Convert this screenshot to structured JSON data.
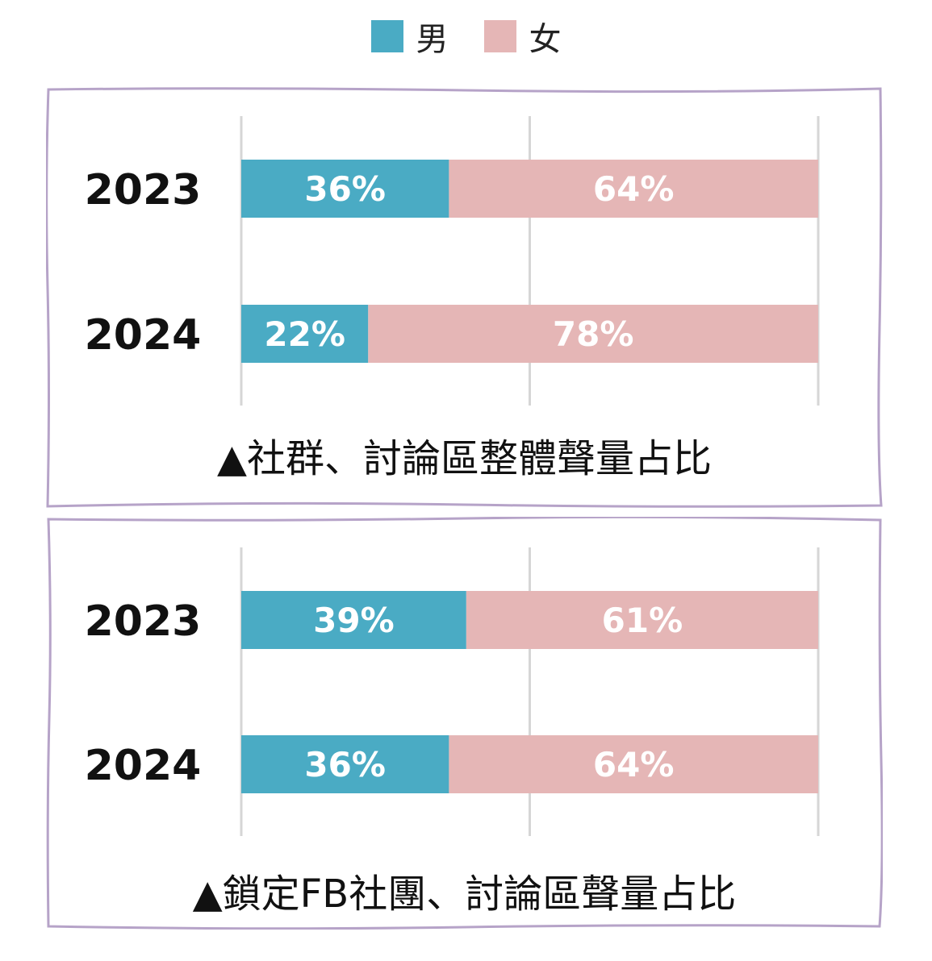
{
  "colors": {
    "male": "#4aabc4",
    "female": "#e5b6b6",
    "grid": "#d6d6d6",
    "frame": "#b6a3c8"
  },
  "legend": [
    {
      "label": "男",
      "color": "#4aabc4"
    },
    {
      "label": "女",
      "color": "#e5b6b6"
    }
  ],
  "chart_data": [
    {
      "type": "bar",
      "orientation": "horizontal",
      "stacked": true,
      "caption": "▲社群、討論區整體聲量占比",
      "categories": [
        "2023",
        "2024"
      ],
      "series": [
        {
          "name": "男",
          "values": [
            36,
            22
          ],
          "labels": [
            "36%",
            "22%"
          ]
        },
        {
          "name": "女",
          "values": [
            64,
            78
          ],
          "labels": [
            "64%",
            "78%"
          ]
        }
      ],
      "xlim": [
        0,
        100
      ],
      "grid": true,
      "legend": "top-center"
    },
    {
      "type": "bar",
      "orientation": "horizontal",
      "stacked": true,
      "caption": "▲鎖定FB社團、討論區聲量占比",
      "categories": [
        "2023",
        "2024"
      ],
      "series": [
        {
          "name": "男",
          "values": [
            39,
            36
          ],
          "labels": [
            "39%",
            "36%"
          ]
        },
        {
          "name": "女",
          "values": [
            61,
            64
          ],
          "labels": [
            "61%",
            "64%"
          ]
        }
      ],
      "xlim": [
        0,
        100
      ],
      "grid": true,
      "legend": "top-center"
    }
  ]
}
